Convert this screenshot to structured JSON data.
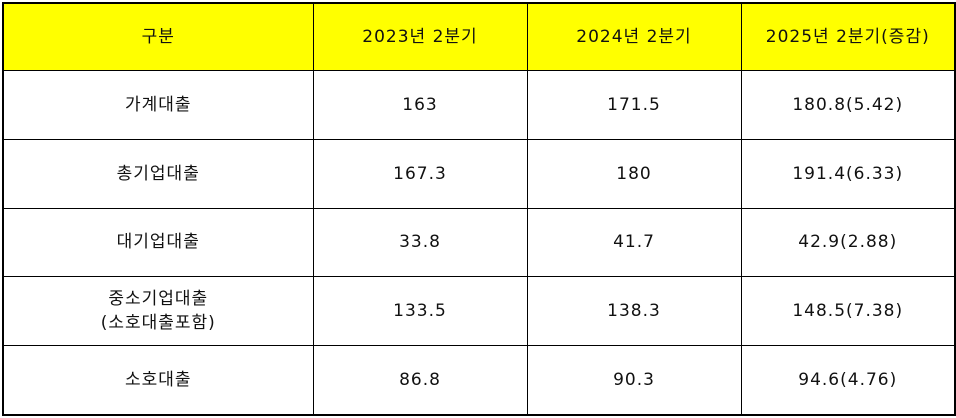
{
  "table": {
    "header": [
      "구분",
      "2023년 2분기",
      "2024년 2분기",
      "2025년 2분기(증감)"
    ],
    "rows": [
      [
        "가계대출",
        "163",
        "171.5",
        "180.8(5.42)"
      ],
      [
        "총기업대출",
        "167.3",
        "180",
        "191.4(6.33)"
      ],
      [
        "대기업대출",
        "33.8",
        "41.7",
        "42.9(2.88)"
      ],
      [
        [
          "중소기업대출",
          "(소호대출포함)"
        ],
        "133.5",
        "138.3",
        "148.5(7.38)"
      ],
      [
        "소호대출",
        "86.8",
        "90.3",
        "94.6(4.76)"
      ]
    ]
  }
}
